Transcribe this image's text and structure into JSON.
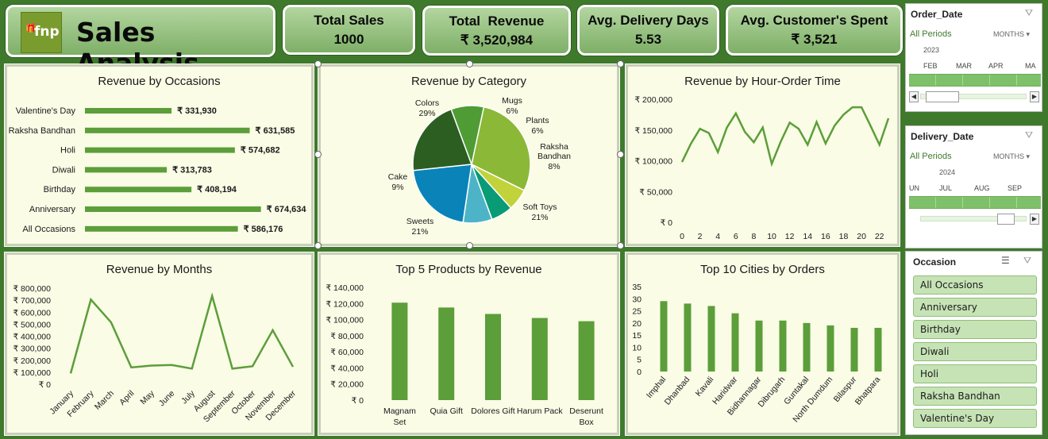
{
  "header": {
    "title": "Sales Analysis",
    "logo_text": "fnp",
    "kpis": [
      {
        "label": "Total Sales",
        "value": "1000"
      },
      {
        "label": "Total  Revenue",
        "value": "₹ 3,520,984"
      },
      {
        "label": "Avg. Delivery Days",
        "value": "5.53"
      },
      {
        "label": "Avg. Customer's Spent",
        "value": "₹ 3,521"
      }
    ]
  },
  "colors": {
    "background": "#3f7a2c",
    "bar": "#5c9e3a",
    "panel": "#fafce6",
    "line": "#5c9e3a"
  },
  "panels": {
    "occasions_title": "Revenue by Occasions",
    "category_title": "Revenue by Category",
    "hour_title": "Revenue by Hour-Order Time",
    "months_title": "Revenue by Months",
    "products_title": "Top 5 Products by Revenue",
    "cities_title": "Top 10 Cities by Orders"
  },
  "chart_data": [
    {
      "type": "bar",
      "orientation": "horizontal",
      "title": "Revenue by Occasions",
      "categories": [
        "Valentine's Day",
        "Raksha Bandhan",
        "Holi",
        "Diwali",
        "Birthday",
        "Anniversary",
        "All Occasions"
      ],
      "values": [
        331930,
        631585,
        574682,
        313783,
        408194,
        674634,
        586176
      ],
      "labels": [
        "₹ 331,930",
        "₹ 631,585",
        "₹ 574,682",
        "₹ 313,783",
        "₹ 408,194",
        "₹ 674,634",
        "₹ 586,176"
      ]
    },
    {
      "type": "pie",
      "title": "Revenue by Category",
      "slices": [
        {
          "name": "Colors",
          "pct": "29%",
          "value": 29,
          "color": "#8cb838"
        },
        {
          "name": "Mugs",
          "pct": "6%",
          "value": 6,
          "color": "#c2d23a"
        },
        {
          "name": "Plants",
          "pct": "6%",
          "value": 6,
          "color": "#089b76"
        },
        {
          "name": "Raksha Bandhan",
          "pct": "8%",
          "value": 8,
          "color": "#4db4c8"
        },
        {
          "name": "Soft Toys",
          "pct": "21%",
          "value": 21,
          "color": "#0a84b8"
        },
        {
          "name": "Sweets",
          "pct": "21%",
          "value": 21,
          "color": "#2c5e22"
        },
        {
          "name": "Cake",
          "pct": "9%",
          "value": 9,
          "color": "#4f9c35"
        }
      ]
    },
    {
      "type": "line",
      "title": "Revenue by Hour-Order Time",
      "x": [
        0,
        1,
        2,
        3,
        4,
        5,
        6,
        7,
        8,
        9,
        10,
        11,
        12,
        13,
        14,
        15,
        16,
        17,
        18,
        19,
        20,
        21,
        22,
        23
      ],
      "values": [
        98000,
        128000,
        152000,
        145000,
        114000,
        154000,
        177000,
        147000,
        130000,
        154000,
        95000,
        131000,
        162000,
        152000,
        126000,
        163000,
        128000,
        157000,
        175000,
        187000,
        187000,
        157000,
        126000,
        169000
      ],
      "x_ticks": [
        "0",
        "2",
        "4",
        "6",
        "8",
        "10",
        "12",
        "14",
        "16",
        "18",
        "20",
        "22"
      ],
      "y_ticks": [
        "₹ 0",
        "₹ 50,000",
        "₹ 100,000",
        "₹ 150,000",
        "₹ 200,000"
      ],
      "ylim": [
        0,
        200000
      ]
    },
    {
      "type": "line",
      "title": "Revenue by Months",
      "categories": [
        "January",
        "February",
        "March",
        "April",
        "May",
        "June",
        "July",
        "August",
        "September",
        "October",
        "November",
        "December"
      ],
      "values": [
        90000,
        705000,
        515000,
        140000,
        155000,
        160000,
        130000,
        735000,
        130000,
        150000,
        450000,
        145000
      ],
      "y_ticks": [
        "₹ 0",
        "₹ 100,000",
        "₹ 200,000",
        "₹ 300,000",
        "₹ 400,000",
        "₹ 500,000",
        "₹ 600,000",
        "₹ 700,000",
        "₹ 800,000"
      ],
      "ylim": [
        0,
        800000
      ]
    },
    {
      "type": "bar",
      "title": "Top 5 Products by Revenue",
      "categories": [
        "Magnam Set",
        "Quia Gift",
        "Dolores Gift",
        "Harum Pack",
        "Deserunt Box"
      ],
      "category_lines": [
        [
          "Magnam",
          "Set"
        ],
        [
          "Quia Gift"
        ],
        [
          "Dolores Gift"
        ],
        [
          "Harum Pack"
        ],
        [
          "Deserunt",
          "Box"
        ]
      ],
      "values": [
        121000,
        115000,
        107000,
        102000,
        98000
      ],
      "y_ticks": [
        "₹ 0",
        "₹ 20,000",
        "₹ 40,000",
        "₹ 60,000",
        "₹ 80,000",
        "₹ 100,000",
        "₹ 120,000",
        "₹ 140,000"
      ],
      "ylim": [
        0,
        140000
      ]
    },
    {
      "type": "bar",
      "title": "Top 10 Cities by Orders",
      "categories": [
        "Imphal",
        "Dhanbad",
        "Kavali",
        "Haridwar",
        "Bidhannagar",
        "Dibrugarh",
        "Guntakal",
        "North Dumdum",
        "Bilaspur",
        "Bhatpara"
      ],
      "values": [
        29,
        28,
        27,
        24,
        21,
        21,
        20,
        19,
        18,
        18
      ],
      "y_ticks": [
        "0",
        "5",
        "10",
        "15",
        "20",
        "25",
        "30",
        "35"
      ],
      "ylim": [
        0,
        35
      ]
    }
  ],
  "slicers": {
    "order_date": {
      "title": "Order_Date",
      "period": "All Periods",
      "unit": "MONTHS",
      "year": "2023",
      "months": [
        "FEB",
        "MAR",
        "APR",
        "MA"
      ]
    },
    "delivery_date": {
      "title": "Delivery_Date",
      "period": "All Periods",
      "unit": "MONTHS",
      "year": "2024",
      "months": [
        "UN",
        "JUL",
        "AUG",
        "SEP"
      ]
    },
    "occasion": {
      "title": "Occasion",
      "items": [
        "All Occasions",
        "Anniversary",
        "Birthday",
        "Diwali",
        "Holi",
        "Raksha Bandhan",
        "Valentine's Day"
      ]
    }
  }
}
